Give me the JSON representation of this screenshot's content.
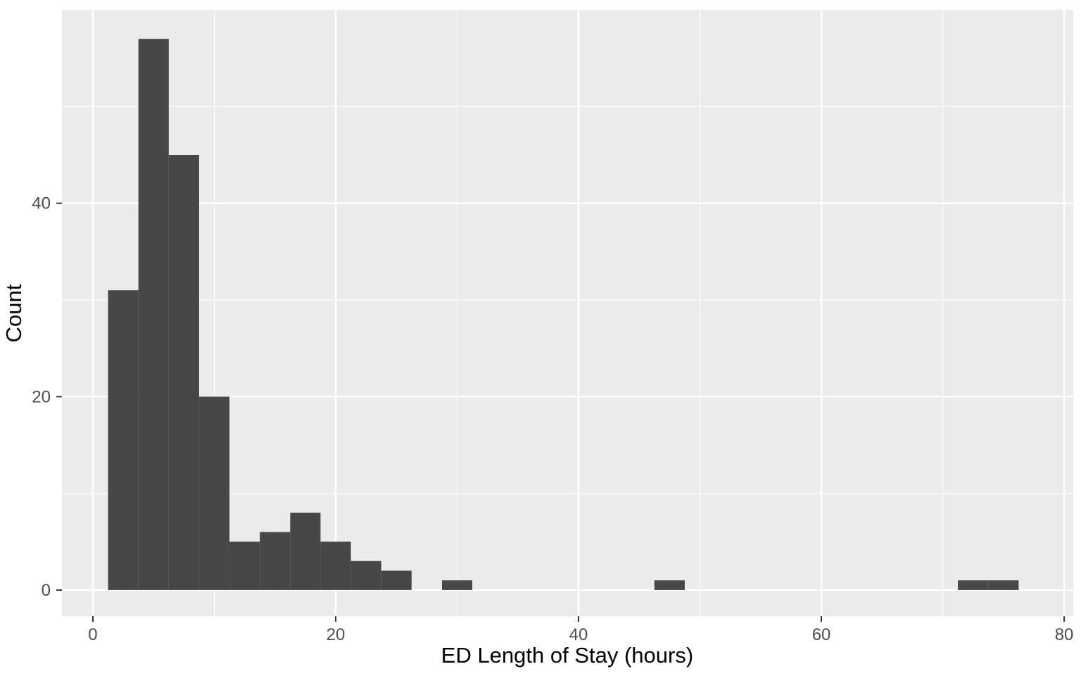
{
  "chart_data": {
    "type": "bar",
    "subtype": "histogram",
    "title": "",
    "xlabel": "ED Length of Stay (hours)",
    "ylabel": "Count",
    "binwidth": 2.5,
    "bins": [
      {
        "center": 2.5,
        "count": 31
      },
      {
        "center": 5.0,
        "count": 57
      },
      {
        "center": 7.5,
        "count": 45
      },
      {
        "center": 10.0,
        "count": 20
      },
      {
        "center": 12.5,
        "count": 5
      },
      {
        "center": 15.0,
        "count": 6
      },
      {
        "center": 17.5,
        "count": 8
      },
      {
        "center": 20.0,
        "count": 5
      },
      {
        "center": 22.5,
        "count": 3
      },
      {
        "center": 25.0,
        "count": 2
      },
      {
        "center": 30.0,
        "count": 1
      },
      {
        "center": 47.5,
        "count": 1
      },
      {
        "center": 72.5,
        "count": 1
      },
      {
        "center": 75.0,
        "count": 1
      }
    ],
    "x_ticks": [
      0,
      20,
      40,
      60,
      80
    ],
    "y_ticks": [
      0,
      20,
      40
    ],
    "x_minor_gridlines": [
      10,
      30,
      50,
      70
    ],
    "y_minor_gridlines": [
      10,
      30,
      50
    ],
    "xlim": [
      -2.55,
      80.75
    ],
    "ylim": [
      -2.7,
      60.0
    ],
    "grid": true,
    "legend": "none",
    "colors": {
      "bar_fill": "#474747",
      "panel_background": "#EBEBEB",
      "gridline": "#FFFFFF",
      "tick_mark": "#333333",
      "tick_label": "#4D4D4D",
      "axis_title": "#000000",
      "outer_background": "#FFFFFF"
    }
  }
}
